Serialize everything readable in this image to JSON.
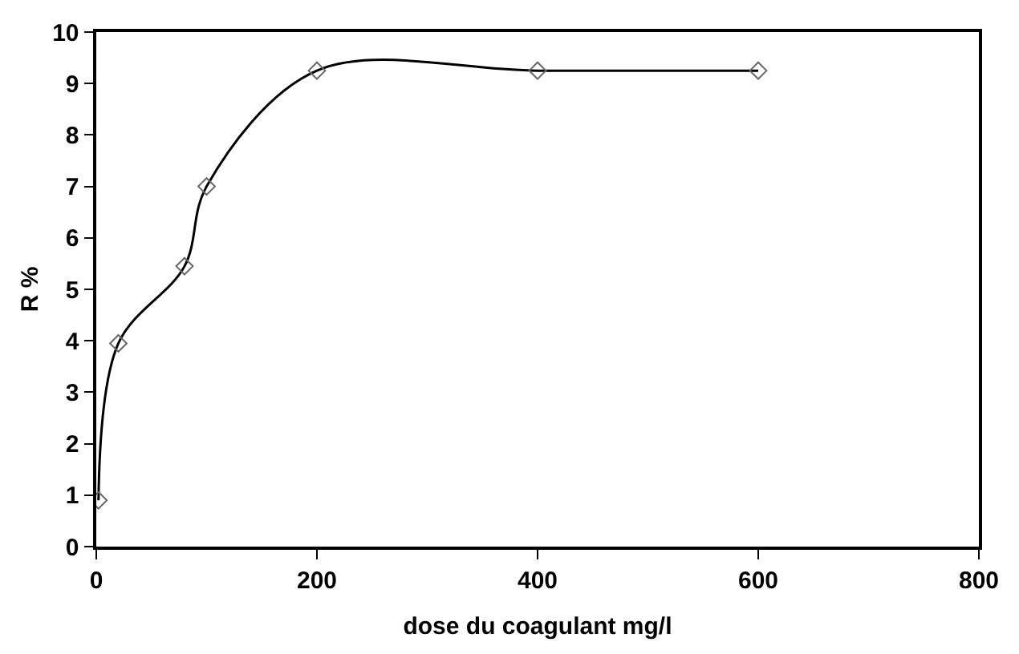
{
  "chart_data": {
    "type": "line",
    "xlabel": "dose du coagulant mg/l",
    "ylabel": "R %",
    "x": [
      2,
      20,
      80,
      100,
      200,
      400,
      600
    ],
    "series": [
      {
        "color": "#000000",
        "values": [
          0.9,
          3.95,
          5.45,
          7.0,
          9.25,
          9.25,
          9.25
        ]
      }
    ],
    "xlim": [
      0,
      800
    ],
    "xticks": [
      0,
      200,
      400,
      600,
      800
    ],
    "ylim": [
      0,
      10
    ],
    "yticks": [
      0,
      1,
      2,
      3,
      4,
      5,
      6,
      7,
      8,
      9,
      10
    ],
    "marker": "diamond",
    "line_style": "solid"
  }
}
